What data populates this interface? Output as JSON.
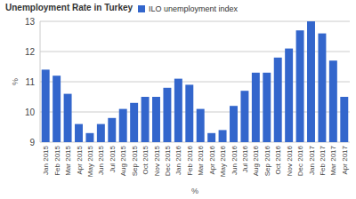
{
  "chart_data": {
    "type": "bar",
    "title": "Unemployment Rate in Turkey",
    "x_label": "%",
    "y_label": "%",
    "categories": [
      "Jan 2015",
      "Feb 2015",
      "Mar 2015",
      "Apr 2015",
      "May 2015",
      "Jun 2015",
      "Jul 2015",
      "Aug 2015",
      "Sep 2015",
      "Oct 2015",
      "Nov 2015",
      "Dec 2015",
      "Jan 2016",
      "Feb 2016",
      "Mar 2016",
      "Apr 2016",
      "May 2016",
      "Jun 2016",
      "Jul 2016",
      "Aug 2016",
      "Sep 2016",
      "Oct 2016",
      "Nov 2016",
      "Dec 2016",
      "Jan 2017",
      "Feb 2017",
      "Mar 2017",
      "Apr 2017"
    ],
    "series": [
      {
        "name": "ILO unemployment index",
        "color": "#3366cc",
        "values": [
          11.4,
          11.2,
          10.6,
          9.6,
          9.3,
          9.6,
          9.8,
          10.1,
          10.3,
          10.5,
          10.5,
          10.8,
          11.1,
          10.9,
          10.1,
          9.3,
          9.4,
          10.2,
          10.7,
          11.3,
          11.3,
          11.8,
          12.1,
          12.7,
          13.0,
          12.6,
          11.7,
          10.5
        ]
      }
    ],
    "ylim": [
      9,
      13
    ],
    "yticks": [
      9,
      10,
      11,
      12,
      13
    ],
    "grid": true,
    "legend": "top"
  }
}
